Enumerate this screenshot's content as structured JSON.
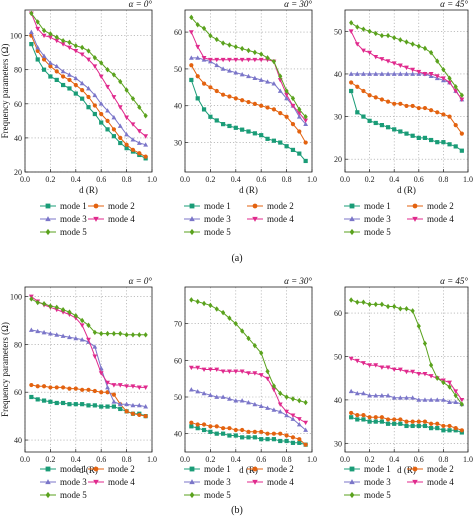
{
  "figure": {
    "ylabel": "Frequency parameters (Ω)",
    "captions": [
      "(a)",
      "(b)"
    ],
    "colors": {
      "mode 1": "#1a9c77",
      "mode 2": "#e3620f",
      "mode 3": "#7b76c9",
      "mode 4": "#e02a8d",
      "mode 5": "#5aa21d"
    }
  },
  "chart_data": [
    {
      "type": "line",
      "title": "α = 0°",
      "xlabel": "d (R)",
      "ylabel": "Frequency parameters (Ω)",
      "xlim": [
        0,
        1
      ],
      "ylim": [
        20,
        115
      ],
      "xticks": [
        0.0,
        0.2,
        0.4,
        0.6,
        0.8,
        1.0
      ],
      "yticks": [
        20,
        40,
        60,
        80,
        100
      ],
      "grid": true,
      "legend": "below",
      "x": [
        0.05,
        0.1,
        0.15,
        0.2,
        0.25,
        0.3,
        0.35,
        0.4,
        0.45,
        0.5,
        0.55,
        0.6,
        0.65,
        0.7,
        0.75,
        0.8,
        0.85,
        0.9,
        0.95
      ],
      "series": [
        {
          "name": "mode 1",
          "values": [
            95,
            86,
            80,
            76,
            74,
            71,
            69,
            66,
            63,
            58,
            54,
            49,
            45,
            41,
            37,
            34,
            32,
            30,
            28
          ]
        },
        {
          "name": "mode 2",
          "values": [
            100,
            91,
            86,
            82,
            79,
            76,
            74,
            71,
            68,
            64,
            59,
            54,
            50,
            45,
            40,
            36,
            33,
            31,
            29
          ]
        },
        {
          "name": "mode 3",
          "values": [
            102,
            93,
            88,
            84,
            82,
            79,
            77,
            75,
            72,
            69,
            65,
            60,
            56,
            52,
            47,
            42,
            39,
            37,
            36
          ]
        },
        {
          "name": "mode 4",
          "values": [
            113,
            104,
            100,
            99,
            97,
            95,
            93,
            91,
            89,
            86,
            82,
            76,
            70,
            64,
            58,
            52,
            48,
            44,
            41
          ]
        },
        {
          "name": "mode 5",
          "values": [
            113,
            108,
            103,
            101,
            99,
            97,
            96,
            94,
            93,
            91,
            87,
            84,
            80,
            77,
            73,
            68,
            63,
            58,
            53
          ]
        }
      ]
    },
    {
      "type": "line",
      "title": "α = 30°",
      "xlabel": "d (R)",
      "ylabel": "",
      "xlim": [
        0,
        1
      ],
      "ylim": [
        22,
        66
      ],
      "xticks": [
        0.0,
        0.2,
        0.4,
        0.6,
        0.8,
        1.0
      ],
      "yticks": [
        30,
        40,
        50,
        60
      ],
      "grid": true,
      "legend": "below",
      "x": [
        0.05,
        0.1,
        0.15,
        0.2,
        0.25,
        0.3,
        0.35,
        0.4,
        0.45,
        0.5,
        0.55,
        0.6,
        0.65,
        0.7,
        0.75,
        0.8,
        0.85,
        0.9,
        0.95
      ],
      "series": [
        {
          "name": "mode 1",
          "values": [
            47,
            42,
            39,
            37,
            36,
            35,
            34.5,
            34,
            33.5,
            33,
            32.5,
            32,
            31,
            30.5,
            30,
            29,
            28,
            27,
            25
          ]
        },
        {
          "name": "mode 2",
          "values": [
            51,
            48,
            46,
            45,
            44,
            43,
            42.5,
            42,
            41.5,
            41,
            40.5,
            40,
            39.5,
            39,
            38,
            37,
            35,
            33,
            30
          ]
        },
        {
          "name": "mode 3",
          "values": [
            53,
            53,
            52.5,
            52,
            51,
            50,
            49.5,
            49,
            48.5,
            48,
            47.5,
            47,
            46.5,
            46,
            44,
            42,
            40,
            37,
            35
          ]
        },
        {
          "name": "mode 4",
          "values": [
            60,
            56,
            53,
            52.5,
            52.5,
            52.5,
            52.5,
            52.5,
            52.5,
            52.5,
            52.5,
            52.5,
            52.5,
            52,
            47,
            43,
            40,
            38,
            36
          ]
        },
        {
          "name": "mode 5",
          "values": [
            64,
            62,
            61,
            59,
            58,
            57,
            56.5,
            56,
            55.5,
            55,
            54.5,
            54,
            53,
            52,
            48,
            44,
            42,
            39,
            37
          ]
        }
      ]
    },
    {
      "type": "line",
      "title": "α = 45°",
      "xlabel": "d (R)",
      "ylabel": "",
      "xlim": [
        0,
        1
      ],
      "ylim": [
        17,
        55
      ],
      "xticks": [
        0.0,
        0.2,
        0.4,
        0.6,
        0.8,
        1.0
      ],
      "yticks": [
        20,
        30,
        40,
        50
      ],
      "grid": true,
      "legend": "below",
      "x": [
        0.05,
        0.1,
        0.15,
        0.2,
        0.25,
        0.3,
        0.35,
        0.4,
        0.45,
        0.5,
        0.55,
        0.6,
        0.65,
        0.7,
        0.75,
        0.8,
        0.85,
        0.9,
        0.95
      ],
      "series": [
        {
          "name": "mode 1",
          "values": [
            36,
            31,
            30,
            29,
            28.5,
            28,
            27.5,
            27,
            26.5,
            26,
            25.5,
            25,
            25,
            24.5,
            24,
            24,
            23.5,
            23,
            22
          ]
        },
        {
          "name": "mode 2",
          "values": [
            38,
            37,
            36,
            35,
            34.5,
            34,
            33.5,
            33,
            33,
            32.5,
            32.5,
            32,
            32,
            31.5,
            31,
            30.5,
            30,
            28,
            26
          ]
        },
        {
          "name": "mode 3",
          "values": [
            40,
            40,
            40,
            40,
            40,
            40,
            40,
            40,
            40,
            40,
            40,
            40,
            40,
            39.5,
            39,
            38.5,
            38,
            36,
            34
          ]
        },
        {
          "name": "mode 4",
          "values": [
            50,
            47,
            45.5,
            45,
            44,
            43.5,
            43,
            42.5,
            42,
            41.5,
            41,
            40.5,
            40,
            40,
            39.5,
            39,
            38,
            36,
            34
          ]
        },
        {
          "name": "mode 5",
          "values": [
            52,
            51,
            50.5,
            50,
            49.5,
            49,
            49,
            48.5,
            48,
            47.5,
            47,
            46.5,
            46,
            45,
            43,
            41,
            39,
            37,
            35
          ]
        }
      ]
    },
    {
      "type": "line",
      "title": "α = 0°",
      "xlabel": "d (R)",
      "ylabel": "Frequency parameters (Ω)",
      "xlim": [
        0,
        1
      ],
      "ylim": [
        35,
        104
      ],
      "xticks": [
        0.0,
        0.2,
        0.4,
        0.6,
        0.8,
        1.0
      ],
      "yticks": [
        40,
        60,
        80,
        100
      ],
      "grid": true,
      "legend": "below",
      "x": [
        0.05,
        0.1,
        0.15,
        0.2,
        0.25,
        0.3,
        0.35,
        0.4,
        0.45,
        0.5,
        0.55,
        0.6,
        0.65,
        0.7,
        0.75,
        0.8,
        0.85,
        0.9,
        0.95
      ],
      "series": [
        {
          "name": "mode 1",
          "values": [
            58,
            57,
            56.5,
            56,
            55.5,
            55.5,
            55,
            55,
            55,
            54.5,
            54.5,
            54,
            54,
            54,
            53,
            52,
            51,
            51,
            50
          ]
        },
        {
          "name": "mode 2",
          "values": [
            63,
            62.5,
            62.5,
            62,
            62,
            62,
            61.5,
            61.5,
            61,
            61,
            60.5,
            60,
            60,
            59,
            55,
            52,
            51,
            50.5,
            50
          ]
        },
        {
          "name": "mode 3",
          "values": [
            86,
            85.5,
            85,
            84.5,
            84,
            83.5,
            83,
            82.5,
            82,
            81,
            79,
            70,
            62,
            56,
            55,
            55,
            54.5,
            54.5,
            54
          ]
        },
        {
          "name": "mode 4",
          "values": [
            100,
            98,
            96.5,
            95.5,
            94.5,
            93.5,
            92.5,
            91,
            88,
            82,
            75,
            68,
            64,
            63,
            63,
            62.5,
            62.5,
            62,
            62
          ]
        },
        {
          "name": "mode 5",
          "values": [
            99,
            97.5,
            97,
            96,
            95.5,
            94.5,
            93.5,
            92,
            90,
            88,
            85,
            84.5,
            84.5,
            84.5,
            84.5,
            84,
            84,
            84,
            84
          ]
        }
      ]
    },
    {
      "type": "line",
      "title": "α = 30°",
      "xlabel": "d (R)",
      "ylabel": "",
      "xlim": [
        0,
        1
      ],
      "ylim": [
        35,
        80
      ],
      "xticks": [
        0.0,
        0.2,
        0.4,
        0.6,
        0.8,
        1.0
      ],
      "yticks": [
        40,
        50,
        60,
        70
      ],
      "grid": true,
      "legend": "below",
      "x": [
        0.05,
        0.1,
        0.15,
        0.2,
        0.25,
        0.3,
        0.35,
        0.4,
        0.45,
        0.5,
        0.55,
        0.6,
        0.65,
        0.7,
        0.75,
        0.8,
        0.85,
        0.9,
        0.95
      ],
      "series": [
        {
          "name": "mode 1",
          "values": [
            42,
            41.5,
            41,
            40.5,
            40,
            40,
            39.5,
            39.5,
            39,
            39,
            39,
            38.5,
            38.5,
            38.5,
            38,
            38,
            37.5,
            37.5,
            37
          ]
        },
        {
          "name": "mode 2",
          "values": [
            43,
            42.5,
            42.5,
            42,
            42,
            41.5,
            41.5,
            41,
            41,
            40.5,
            40.5,
            40.5,
            40,
            40,
            40,
            39.5,
            39,
            38.5,
            37
          ]
        },
        {
          "name": "mode 3",
          "values": [
            52,
            51.5,
            51,
            50.5,
            50,
            50,
            49.5,
            49,
            49,
            48.5,
            48,
            47.5,
            47,
            46.5,
            46,
            45,
            44,
            42.5,
            41
          ]
        },
        {
          "name": "mode 4",
          "values": [
            58,
            58,
            57.5,
            57.5,
            57.5,
            57,
            57,
            57,
            57,
            56.5,
            56.5,
            56,
            55,
            52,
            48,
            46,
            45,
            44,
            43
          ]
        },
        {
          "name": "mode 5",
          "values": [
            76.5,
            76,
            75.5,
            75,
            74,
            73,
            71.5,
            70,
            68,
            66,
            64,
            62,
            57,
            53,
            51,
            50,
            49.5,
            49,
            48.5
          ]
        }
      ]
    },
    {
      "type": "line",
      "title": "α = 45°",
      "xlabel": "d (R)",
      "ylabel": "",
      "xlim": [
        0,
        1
      ],
      "ylim": [
        28,
        66
      ],
      "xticks": [
        0.0,
        0.2,
        0.4,
        0.6,
        0.8,
        1.0
      ],
      "yticks": [
        30,
        40,
        50,
        60
      ],
      "grid": true,
      "legend": "below",
      "x": [
        0.05,
        0.1,
        0.15,
        0.2,
        0.25,
        0.3,
        0.35,
        0.4,
        0.45,
        0.5,
        0.55,
        0.6,
        0.65,
        0.7,
        0.75,
        0.8,
        0.85,
        0.9,
        0.95
      ],
      "series": [
        {
          "name": "mode 1",
          "values": [
            36,
            35.5,
            35.5,
            35,
            35,
            35,
            34.5,
            34.5,
            34.5,
            34,
            34,
            34,
            34,
            33.5,
            33.5,
            33,
            33,
            33,
            32.5
          ]
        },
        {
          "name": "mode 2",
          "values": [
            37,
            36.5,
            36.5,
            36,
            36,
            36,
            35.5,
            35.5,
            35.5,
            35,
            35,
            35,
            35,
            34.5,
            34.5,
            34,
            34,
            33.5,
            33
          ]
        },
        {
          "name": "mode 3",
          "values": [
            42,
            41.5,
            41.5,
            41,
            41,
            41,
            41,
            40.5,
            40.5,
            40.5,
            40.5,
            40,
            40,
            40,
            40,
            40,
            39.5,
            39.5,
            39
          ]
        },
        {
          "name": "mode 4",
          "values": [
            49.5,
            49,
            48.5,
            48,
            48,
            47.5,
            47.5,
            47,
            47,
            46.5,
            46.5,
            46,
            46,
            45.5,
            45,
            44.5,
            44,
            42,
            40
          ]
        },
        {
          "name": "mode 5",
          "values": [
            63,
            62.5,
            62.5,
            62,
            62,
            62,
            61.5,
            61.5,
            61,
            61,
            60.5,
            57,
            53,
            48,
            45,
            44,
            43,
            41,
            39
          ]
        }
      ]
    }
  ]
}
